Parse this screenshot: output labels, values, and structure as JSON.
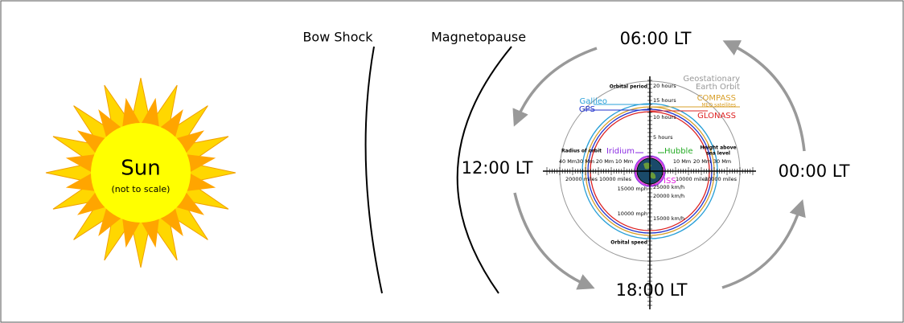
{
  "sun": {
    "label": "Sun",
    "note": "(not to scale)"
  },
  "boundaries": [
    "Bow Shock",
    "Magnetopause"
  ],
  "local_times": [
    "06:00 LT",
    "12:00 LT",
    "00:00 LT",
    "18:00 LT"
  ],
  "orbits": {
    "geo": [
      "Geostationary",
      "Earth Orbit"
    ],
    "compass": [
      "COMPASS",
      "MEO satellites"
    ],
    "glonass": "GLONASS",
    "galileo": "Galileo",
    "gps": "GPS",
    "iridium": "Iridium",
    "hubble": "Hubble",
    "iss": "ISS"
  },
  "axis_titles": {
    "period": "Orbital period",
    "radius": "Radius of orbit",
    "height": [
      "Height above",
      "sea level"
    ],
    "speed": "Orbital speed"
  },
  "period_ticks": [
    "20 hours",
    "15 hours",
    "10 hours",
    "5 hours"
  ],
  "radius_ticks": [
    "40 Mm",
    "30 Mm",
    "20 Mm",
    "10 Mm"
  ],
  "height_ticks": [
    "10 Mm",
    "20 Mm",
    "30 Mm"
  ],
  "miles_ticks": [
    "20000 miles",
    "10000 miles",
    "10000 miles",
    "20000 miles"
  ],
  "speed_ticks": [
    "15000 mph",
    "10000 mph",
    "25000 km/h",
    "20000 km/h",
    "15000 km/h"
  ]
}
